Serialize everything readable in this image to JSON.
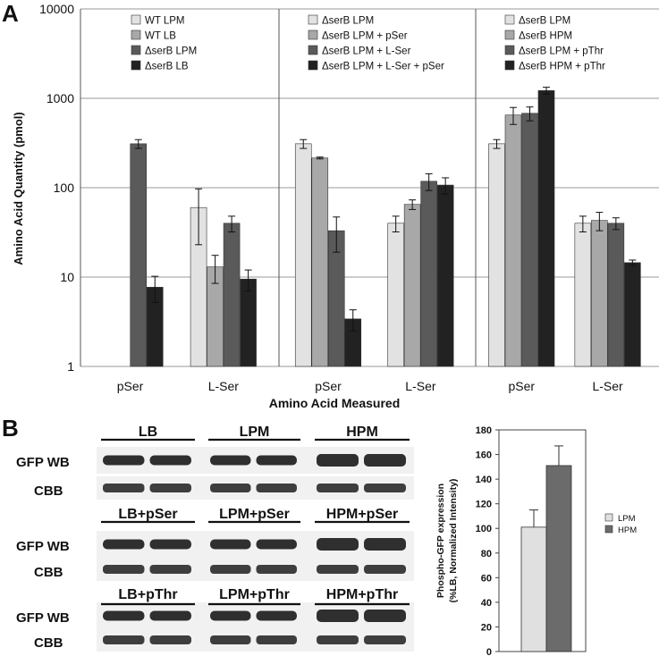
{
  "panel_a_letter": "A",
  "panel_b_letter": "B",
  "colors": {
    "c1": "#e2e2e2",
    "c2": "#a8a8a8",
    "c3": "#5a5a5a",
    "c4": "#222222",
    "grid": "#9a9a9a",
    "blot_band": "#1e1e1e",
    "blot_bg": "#f1f1f1"
  },
  "chart_data": [
    {
      "id": "panel-a",
      "type": "bar",
      "scale": "log",
      "title": "",
      "ylabel": "Amino Acid Quantity (pmol)",
      "xlabel": "Amino Acid Measured",
      "ylim": [
        1,
        10000
      ],
      "yticks": [
        "1",
        "10",
        "100",
        "1000",
        "10000"
      ],
      "yticks_values": [
        1,
        10,
        100,
        1000,
        10000
      ],
      "subplots": [
        {
          "categories": [
            "pSer",
            "L-Ser"
          ],
          "series": [
            {
              "name": "WT LPM",
              "color_key": "c1",
              "values": [
                null,
                60
              ],
              "errors": [
                null,
                37
              ]
            },
            {
              "name": "WT  LB",
              "color_key": "c2",
              "values": [
                null,
                13
              ],
              "errors": [
                null,
                4.5
              ]
            },
            {
              "name": "ΔserB LPM",
              "color_key": "c3",
              "values": [
                310,
                40
              ],
              "errors": [
                35,
                8
              ]
            },
            {
              "name": "ΔserB LB",
              "color_key": "c4",
              "values": [
                7.7,
                9.5
              ],
              "errors": [
                2.5,
                2.5
              ]
            }
          ]
        },
        {
          "categories": [
            "pSer",
            "L-Ser"
          ],
          "series": [
            {
              "name": "ΔserB LPM",
              "color_key": "c1",
              "values": [
                310,
                40
              ],
              "errors": [
                35,
                8
              ]
            },
            {
              "name": "ΔserB LPM + pSer",
              "color_key": "c2",
              "values": [
                215,
                65
              ],
              "errors": [
                5,
                8
              ]
            },
            {
              "name": "ΔserB LPM + L-Ser",
              "color_key": "c3",
              "values": [
                33,
                118
              ],
              "errors": [
                14,
                25
              ]
            },
            {
              "name": "ΔserB LPM + L-Ser + pSer",
              "color_key": "c4",
              "values": [
                3.4,
                107
              ],
              "errors": [
                0.9,
                22
              ]
            }
          ]
        },
        {
          "categories": [
            "pSer",
            "L-Ser"
          ],
          "series": [
            {
              "name": "ΔserB LPM",
              "color_key": "c1",
              "values": [
                310,
                40
              ],
              "errors": [
                35,
                8
              ]
            },
            {
              "name": "ΔserB HPM",
              "color_key": "c2",
              "values": [
                650,
                43
              ],
              "errors": [
                140,
                10
              ]
            },
            {
              "name": "ΔserB LPM + pThr",
              "color_key": "c3",
              "values": [
                680,
                40
              ],
              "errors": [
                120,
                6
              ]
            },
            {
              "name": "ΔserB HPM + pThr",
              "color_key": "c4",
              "values": [
                1220,
                14.5
              ],
              "errors": [
                110,
                1
              ]
            }
          ]
        }
      ]
    },
    {
      "id": "panel-b-chart",
      "type": "bar",
      "title": "",
      "ylabel_lines": [
        "Phospho-GFP expression",
        "(%LB, Normalized Intensity)"
      ],
      "xlabel": "",
      "ylim": [
        0,
        180
      ],
      "yticks": [
        "0",
        "20",
        "40",
        "60",
        "80",
        "100",
        "120",
        "140",
        "160",
        "180"
      ],
      "yticks_values": [
        0,
        20,
        40,
        60,
        80,
        100,
        120,
        140,
        160,
        180
      ],
      "series": [
        {
          "name": "LPM",
          "color": "#e0e0e0",
          "values": [
            101
          ],
          "errors": [
            14
          ]
        },
        {
          "name": "HPM",
          "color": "#6b6b6b",
          "values": [
            151
          ],
          "errors": [
            16
          ]
        }
      ]
    }
  ],
  "blot": {
    "rows": [
      {
        "row_label_1": "GFP WB",
        "row_label_2": "CBB",
        "groups": [
          "LB",
          "LPM",
          "HPM"
        ]
      },
      {
        "row_label_1": "GFP WB",
        "row_label_2": "CBB",
        "groups": [
          "LB+pSer",
          "LPM+pSer",
          "HPM+pSer"
        ]
      },
      {
        "row_label_1": "GFP WB",
        "row_label_2": "CBB",
        "groups": [
          "LB+pThr",
          "LPM+pThr",
          "HPM+pThr"
        ]
      }
    ]
  }
}
